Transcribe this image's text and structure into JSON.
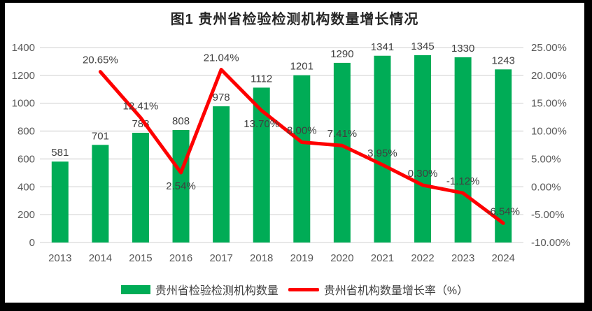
{
  "title": "图1 贵州省检验检测机构数量增长情况",
  "colors": {
    "bar": "#00AC56",
    "line": "#FE0000",
    "grid": "#D9D9D9",
    "axis_text": "#595959",
    "label_text": "#404040",
    "title_text": "#262626",
    "frame": "#000000",
    "background": "#FFFFFF"
  },
  "legend": {
    "items": [
      {
        "label": "贵州省检验检测机构数量",
        "swatch": "bar"
      },
      {
        "label": "贵州省机构数量增长率（%）",
        "swatch": "line"
      }
    ]
  },
  "chart_data": {
    "type": "bar",
    "combo": "bar+line",
    "title": "图1 贵州省检验检测机构数量增长情况",
    "categories": [
      "2013",
      "2014",
      "2015",
      "2016",
      "2017",
      "2018",
      "2019",
      "2020",
      "2021",
      "2022",
      "2023",
      "2024"
    ],
    "series": [
      {
        "name": "贵州省检验检测机构数量",
        "type": "bar",
        "axis": "left",
        "values": [
          581,
          701,
          788,
          808,
          978,
          1112,
          1201,
          1290,
          1341,
          1345,
          1330,
          1243
        ]
      },
      {
        "name": "贵州省机构数量增长率（%）",
        "type": "line",
        "axis": "right",
        "values": [
          null,
          20.65,
          12.41,
          2.54,
          21.04,
          13.7,
          8.0,
          7.41,
          3.95,
          0.3,
          -1.12,
          -6.54
        ],
        "labels": [
          null,
          "20.65%",
          "12.41%",
          "2.54%",
          "21.04%",
          "13.70%",
          "8.00%",
          "7.41%",
          "3.95%",
          "0.30%",
          "-1.12%",
          "-6.54%"
        ],
        "label_placement": [
          null,
          "above",
          "above",
          "below",
          "above",
          "below",
          "above",
          "above",
          "above",
          "above",
          "above",
          "above"
        ]
      }
    ],
    "left_axis": {
      "min": 0,
      "max": 1400,
      "step": 200,
      "ticks": [
        "0",
        "200",
        "400",
        "600",
        "800",
        "1000",
        "1200",
        "1400"
      ]
    },
    "right_axis": {
      "min": -10,
      "max": 25,
      "step": 5,
      "ticks": [
        "-10.00%",
        "-5.00%",
        "0.00%",
        "5.00%",
        "10.00%",
        "15.00%",
        "20.00%",
        "25.00%"
      ]
    },
    "grid": true,
    "legend_position": "bottom"
  }
}
